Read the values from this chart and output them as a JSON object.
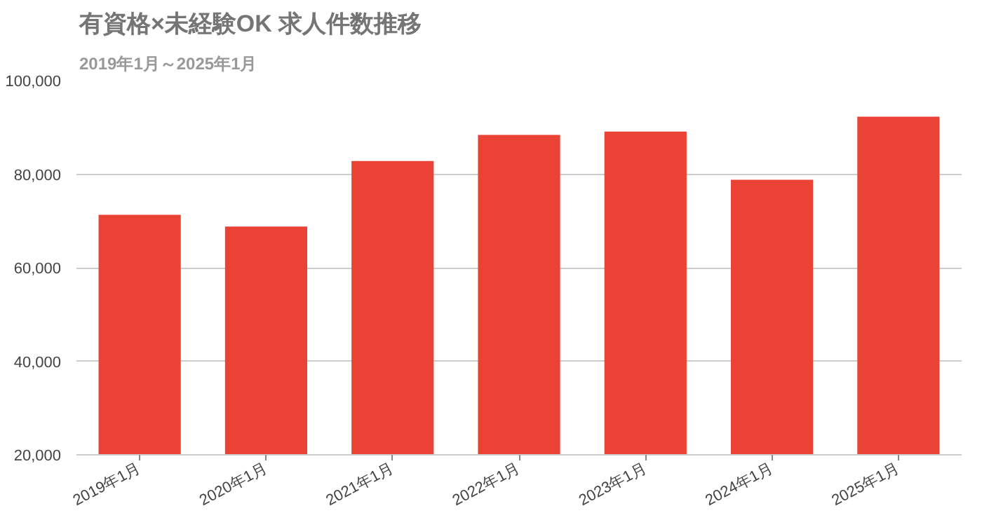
{
  "chart_data": {
    "type": "bar",
    "title": "有資格×未経験OK 求人件数推移",
    "subtitle": "2019年1月～2025年1月",
    "categories": [
      "2019年1月",
      "2020年1月",
      "2021年1月",
      "2022年1月",
      "2023年1月",
      "2024年1月",
      "2025年1月"
    ],
    "values": [
      71300,
      68800,
      82800,
      88400,
      89100,
      78800,
      92300
    ],
    "color": "#ea4335",
    "ylim": [
      20000,
      100000
    ],
    "yticks": [
      {
        "value": 20000,
        "label": "20,000"
      },
      {
        "value": 40000,
        "label": "40,000"
      },
      {
        "value": 60000,
        "label": "60,000"
      },
      {
        "value": 80000,
        "label": "80,000"
      },
      {
        "value": 100000,
        "label": "100,000"
      }
    ],
    "grid": "y"
  }
}
